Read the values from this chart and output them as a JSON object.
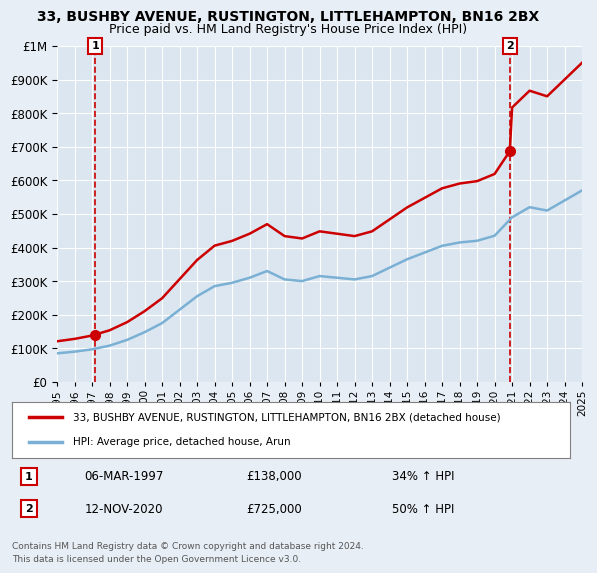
{
  "title1": "33, BUSHBY AVENUE, RUSTINGTON, LITTLEHAMPTON, BN16 2BX",
  "title2": "Price paid vs. HM Land Registry's House Price Index (HPI)",
  "background_color": "#e8eef5",
  "plot_background": "#dce6f0",
  "legend_line1": "33, BUSHBY AVENUE, RUSTINGTON, LITTLEHAMPTON, BN16 2BX (detached house)",
  "legend_line2": "HPI: Average price, detached house, Arun",
  "sale1_date": "06-MAR-1997",
  "sale1_price": 138000,
  "sale1_pct": "34% ↑ HPI",
  "sale2_date": "12-NOV-2020",
  "sale2_price": 725000,
  "sale2_pct": "50% ↑ HPI",
  "footer": "Contains HM Land Registry data © Crown copyright and database right 2024.\nThis data is licensed under the Open Government Licence v3.0.",
  "red_color": "#cc0000",
  "blue_color": "#7ab0d4",
  "sale1_year": 1997.18,
  "sale2_year": 2020.87,
  "xlim": [
    1995,
    2025
  ],
  "ylim": [
    0,
    1000000
  ]
}
